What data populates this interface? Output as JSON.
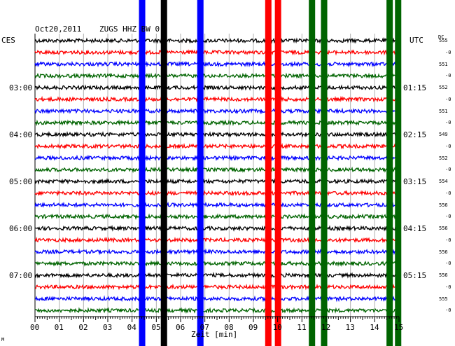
{
  "header": {
    "date": "Oct20,2011",
    "station": "ZUGS HHZ BW 0",
    "left_zone": "CES",
    "right_zone": "UTC",
    "dc_label": "DC"
  },
  "time_left": [
    "03:00",
    "04:00",
    "05:00",
    "06:00",
    "07:00"
  ],
  "time_right": [
    "01:15",
    "02:15",
    "03:15",
    "04:15",
    "05:15"
  ],
  "dc_values": [
    "555",
    "-0",
    "551",
    "-0",
    "552",
    "-0",
    "551",
    "-0",
    "549",
    "-0",
    "552",
    "-0",
    "554",
    "-0",
    "556",
    "-0",
    "556",
    "-0",
    "556",
    "-0",
    "556",
    "-0",
    "555",
    "-0"
  ],
  "x_ticks": [
    "00",
    "01",
    "02",
    "03",
    "04",
    "05",
    "06",
    "07",
    "08",
    "09",
    "10",
    "11",
    "12",
    "13",
    "14",
    "15"
  ],
  "x_axis_label": "Zeit [min]",
  "corner_mark": "M",
  "colors": {
    "trace_cycle": [
      "#000000",
      "#ff0000",
      "#0000ff",
      "#006400"
    ],
    "grid": "#b0b0b0"
  },
  "chart_data": {
    "type": "line",
    "xlabel": "Zeit [min]",
    "xlim": [
      0,
      15
    ],
    "trace_count": 24,
    "trace_colors": [
      "black",
      "red",
      "blue",
      "green"
    ],
    "x_tick_labels": [
      "00",
      "01",
      "02",
      "03",
      "04",
      "05",
      "06",
      "07",
      "08",
      "09",
      "10",
      "11",
      "12",
      "13",
      "14",
      "15"
    ],
    "left_time_labels": [
      "03:00",
      "04:00",
      "05:00",
      "06:00",
      "07:00"
    ],
    "right_time_labels": [
      "01:15",
      "02:15",
      "03:15",
      "04:15",
      "05:15"
    ],
    "events": [
      {
        "minute": 4.4,
        "color": "blue"
      },
      {
        "minute": 5.3,
        "color": "black"
      },
      {
        "minute": 6.8,
        "color": "blue"
      },
      {
        "minute": 9.6,
        "color": "red"
      },
      {
        "minute": 10.0,
        "color": "red"
      },
      {
        "minute": 11.4,
        "color": "green"
      },
      {
        "minute": 11.9,
        "color": "green"
      },
      {
        "minute": 14.6,
        "color": "green"
      },
      {
        "minute": 14.95,
        "color": "green"
      }
    ]
  }
}
